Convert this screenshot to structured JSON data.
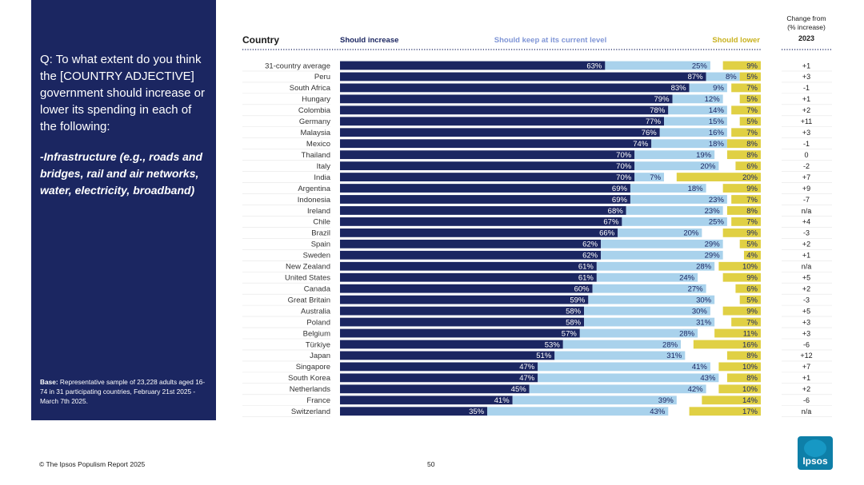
{
  "panel": {
    "question": "Q: To what extent do you think the [COUNTRY ADJECTIVE] government should increase or lower its spending in each of the following:",
    "topic": "-Infrastructure (e.g., roads and bridges, rail and air networks, water, electricity, broadband)",
    "base_label": "Base:",
    "base_text": "Representative sample of 23,228 adults aged 16-74 in 31 participating countries, February 21st 2025 - March 7th 2025."
  },
  "footer": {
    "copyright": "© The Ipsos Populism Report 2025",
    "page_number": "50",
    "logo_text": "Ipsos"
  },
  "colors": {
    "increase": "#1b2661",
    "keep": "#a9d2ec",
    "lower": "#e0d044",
    "panel": "#1b2661",
    "legend_increase": "#1b2661",
    "legend_keep": "#7f95d6",
    "legend_lower": "#c9b21f",
    "logo": "#0e7fa8"
  },
  "chart_data": {
    "type": "bar",
    "orientation": "horizontal",
    "stacked": true,
    "header_country": "Country",
    "change_header": [
      "Change from",
      "(% increase)",
      "2023"
    ],
    "categories": [
      "31-country average",
      "Peru",
      "South Africa",
      "Hungary",
      "Colombia",
      "Germany",
      "Malaysia",
      "Mexico",
      "Thailand",
      "Italy",
      "India",
      "Argentina",
      "Indonesia",
      "Ireland",
      "Chile",
      "Brazil",
      "Spain",
      "Sweden",
      "New Zealand",
      "United States",
      "Canada",
      "Great Britain",
      "Australia",
      "Poland",
      "Belgium",
      "Türkiye",
      "Japan",
      "Singapore",
      "South Korea",
      "Netherlands",
      "France",
      "Switzerland"
    ],
    "series": [
      {
        "name": "Should increase",
        "values": [
          63,
          87,
          83,
          79,
          78,
          77,
          76,
          74,
          70,
          70,
          70,
          69,
          69,
          68,
          67,
          66,
          62,
          62,
          61,
          61,
          60,
          59,
          58,
          58,
          57,
          53,
          51,
          47,
          47,
          45,
          41,
          35
        ]
      },
      {
        "name": "Should keep at its current level",
        "values": [
          25,
          8,
          9,
          12,
          14,
          15,
          16,
          18,
          19,
          20,
          7,
          18,
          23,
          23,
          25,
          20,
          29,
          29,
          28,
          24,
          27,
          30,
          30,
          31,
          28,
          28,
          31,
          41,
          43,
          42,
          39,
          43
        ]
      },
      {
        "name": "Should lower",
        "values": [
          9,
          5,
          7,
          5,
          7,
          5,
          7,
          8,
          8,
          6,
          20,
          9,
          7,
          8,
          7,
          9,
          5,
          4,
          10,
          9,
          6,
          5,
          9,
          7,
          11,
          16,
          8,
          10,
          8,
          10,
          14,
          17
        ]
      }
    ],
    "labels": [
      [
        "63%",
        "25%",
        "9%"
      ],
      [
        "87%",
        "8%",
        "5%"
      ],
      [
        "83%",
        "9%",
        "7%"
      ],
      [
        "79%",
        "12%",
        "5%"
      ],
      [
        "78%",
        "14%",
        "7%"
      ],
      [
        "77%",
        "15%",
        "5%"
      ],
      [
        "76%",
        "16%",
        "7%"
      ],
      [
        "74%",
        "18%",
        "8%"
      ],
      [
        "70%",
        "19%",
        "8%"
      ],
      [
        "70%",
        "20%",
        "6%"
      ],
      [
        "70%",
        "7%",
        "20%"
      ],
      [
        "69%",
        "18%",
        "9%"
      ],
      [
        "69%",
        "23%",
        "7%"
      ],
      [
        "68%",
        "23%",
        "8%"
      ],
      [
        "67%",
        "25%",
        "7%"
      ],
      [
        "66%",
        "20%",
        "9%"
      ],
      [
        "62%",
        "29%",
        "5%"
      ],
      [
        "62%",
        "29%",
        "4%"
      ],
      [
        "61%",
        "28%",
        "10%"
      ],
      [
        "61%",
        "24%",
        "9%"
      ],
      [
        "60%",
        "27%",
        "6%"
      ],
      [
        "59%",
        "30%",
        "5%"
      ],
      [
        "58%",
        "30%",
        "9%"
      ],
      [
        "58%",
        "31%",
        "7%"
      ],
      [
        "57%",
        "28%",
        "11%"
      ],
      [
        "53%",
        "28%",
        "16%"
      ],
      [
        "51%",
        "31%",
        "8%"
      ],
      [
        "47%",
        "41%",
        "10%"
      ],
      [
        "47%",
        "43%",
        "8%"
      ],
      [
        "45%",
        "42%",
        "10%"
      ],
      [
        "41%",
        "39%",
        "14%"
      ],
      [
        "35%",
        "43%",
        "17%"
      ]
    ],
    "change_from_2023": [
      "+1",
      "+3",
      "-1",
      "+1",
      "+2",
      "+11",
      "+3",
      "-1",
      "0",
      "-2",
      "+7",
      "+9",
      "-7",
      "n/a",
      "+4",
      "-3",
      "+2",
      "+1",
      "n/a",
      "+5",
      "+2",
      "-3",
      "+5",
      "+3",
      "+3",
      "-6",
      "+12",
      "+7",
      "+1",
      "+2",
      "-6",
      "n/a"
    ],
    "xlim": [
      0,
      100
    ],
    "legend_position": "top"
  }
}
